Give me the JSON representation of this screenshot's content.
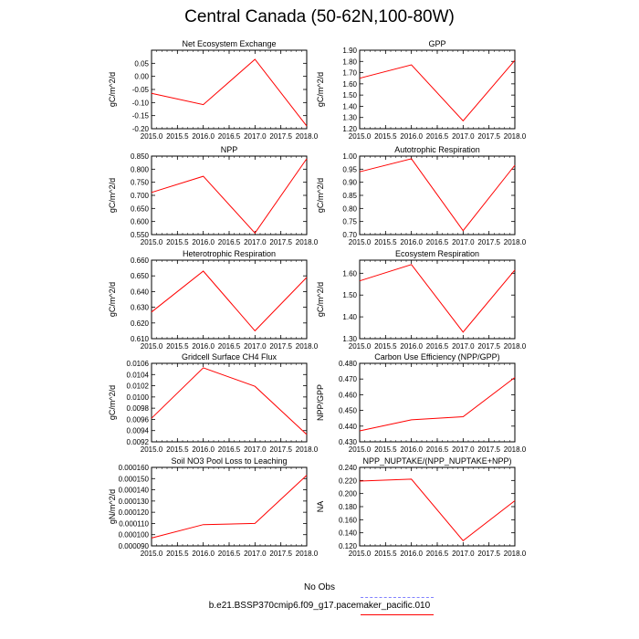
{
  "figure": {
    "title": "Central Canada (50-62N,100-80W)"
  },
  "legend": {
    "entries": [
      {
        "label": "No Obs",
        "color": "#8080ff",
        "style": "dashed"
      },
      {
        "label": "b.e21.BSSP370cmip6.f09_g17.pacemaker_pacific.010",
        "color": "#ff0000",
        "style": "solid"
      }
    ]
  },
  "chart_data": [
    {
      "type": "line",
      "title": "Net Ecosystem Exchange",
      "ylabel": "gC/m^2/d",
      "x": [
        2015,
        2016,
        2017,
        2018
      ],
      "xlim": [
        2015,
        2018
      ],
      "xticks": [
        "2015.0",
        "2015.5",
        "2016.0",
        "2016.5",
        "2017.0",
        "2017.5",
        "2018.0"
      ],
      "ylim": [
        -0.2,
        0.1
      ],
      "yticks": [
        "-0.20",
        "-0.15",
        "-0.10",
        "-0.05",
        "0.00",
        "0.05"
      ],
      "ytick_values": [
        -0.2,
        -0.15,
        -0.1,
        -0.05,
        0,
        0.05
      ],
      "series": [
        {
          "values": [
            -0.065,
            -0.108,
            0.065,
            -0.19
          ],
          "color": "#ff0000"
        }
      ]
    },
    {
      "type": "line",
      "title": "GPP",
      "ylabel": "gC/m^2/d",
      "x": [
        2015,
        2016,
        2017,
        2018
      ],
      "xlim": [
        2015,
        2018
      ],
      "xticks": [
        "2015.0",
        "2015.5",
        "2016.0",
        "2016.5",
        "2017.0",
        "2017.5",
        "2018.0"
      ],
      "ylim": [
        1.2,
        1.9
      ],
      "yticks": [
        "1.20",
        "1.30",
        "1.40",
        "1.50",
        "1.60",
        "1.70",
        "1.80",
        "1.90"
      ],
      "ytick_values": [
        1.2,
        1.3,
        1.4,
        1.5,
        1.6,
        1.7,
        1.8,
        1.9
      ],
      "series": [
        {
          "values": [
            1.65,
            1.77,
            1.27,
            1.81
          ],
          "color": "#ff0000"
        }
      ]
    },
    {
      "type": "line",
      "title": "NPP",
      "ylabel": "gC/m^2/d",
      "x": [
        2015,
        2016,
        2017,
        2018
      ],
      "xlim": [
        2015,
        2018
      ],
      "xticks": [
        "2015.0",
        "2015.5",
        "2016.0",
        "2016.5",
        "2017.0",
        "2017.5",
        "2018.0"
      ],
      "ylim": [
        0.55,
        0.85
      ],
      "yticks": [
        "0.550",
        "0.600",
        "0.650",
        "0.700",
        "0.750",
        "0.800",
        "0.850"
      ],
      "ytick_values": [
        0.55,
        0.6,
        0.65,
        0.7,
        0.75,
        0.8,
        0.85
      ],
      "series": [
        {
          "values": [
            0.711,
            0.773,
            0.556,
            0.84
          ],
          "color": "#ff0000"
        }
      ]
    },
    {
      "type": "line",
      "title": "Autotrophic Respiration",
      "ylabel": "gC/m^2/d",
      "x": [
        2015,
        2016,
        2017,
        2018
      ],
      "xlim": [
        2015,
        2018
      ],
      "xticks": [
        "2015.0",
        "2015.5",
        "2016.0",
        "2016.5",
        "2017.0",
        "2017.5",
        "2018.0"
      ],
      "ylim": [
        0.7,
        1.0
      ],
      "yticks": [
        "0.70",
        "0.75",
        "0.80",
        "0.85",
        "0.90",
        "0.95",
        "1.00"
      ],
      "ytick_values": [
        0.7,
        0.75,
        0.8,
        0.85,
        0.9,
        0.95,
        1.0
      ],
      "series": [
        {
          "values": [
            0.94,
            0.99,
            0.715,
            0.965
          ],
          "color": "#ff0000"
        }
      ]
    },
    {
      "type": "line",
      "title": "Heterotrophic Respiration",
      "ylabel": "gC/m^2/d",
      "x": [
        2015,
        2016,
        2017,
        2018
      ],
      "xlim": [
        2015,
        2018
      ],
      "xticks": [
        "2015.0",
        "2015.5",
        "2016.0",
        "2016.5",
        "2017.0",
        "2017.5",
        "2018.0"
      ],
      "ylim": [
        0.61,
        0.66
      ],
      "yticks": [
        "0.610",
        "0.620",
        "0.630",
        "0.640",
        "0.650",
        "0.660"
      ],
      "ytick_values": [
        0.61,
        0.62,
        0.63,
        0.64,
        0.65,
        0.66
      ],
      "series": [
        {
          "values": [
            0.627,
            0.653,
            0.615,
            0.649
          ],
          "color": "#ff0000"
        }
      ]
    },
    {
      "type": "line",
      "title": "Ecosystem Respiration",
      "ylabel": "gC/m^2/d",
      "x": [
        2015,
        2016,
        2017,
        2018
      ],
      "xlim": [
        2015,
        2018
      ],
      "xticks": [
        "2015.0",
        "2015.5",
        "2016.0",
        "2016.5",
        "2017.0",
        "2017.5",
        "2018.0"
      ],
      "ylim": [
        1.3,
        1.66
      ],
      "yticks": [
        "1.30",
        "1.40",
        "1.50",
        "1.60"
      ],
      "ytick_values": [
        1.3,
        1.4,
        1.5,
        1.6
      ],
      "series": [
        {
          "values": [
            1.565,
            1.64,
            1.33,
            1.615
          ],
          "color": "#ff0000"
        }
      ]
    },
    {
      "type": "line",
      "title": "Gridcell Surface CH4 Flux",
      "ylabel": "gC/m^2/d",
      "x": [
        2015,
        2016,
        2017,
        2018
      ],
      "xlim": [
        2015,
        2018
      ],
      "xticks": [
        "2015.0",
        "2015.5",
        "2016.0",
        "2016.5",
        "2017.0",
        "2017.5",
        "2018.0"
      ],
      "ylim": [
        0.0092,
        0.0106
      ],
      "yticks": [
        "0.0092",
        "0.0094",
        "0.0096",
        "0.0098",
        "0.0100",
        "0.0102",
        "0.0104",
        "0.0106"
      ],
      "ytick_values": [
        0.0092,
        0.0094,
        0.0096,
        0.0098,
        0.01,
        0.0102,
        0.0104,
        0.0106
      ],
      "series": [
        {
          "values": [
            0.00962,
            0.01052,
            0.01019,
            0.00933
          ],
          "color": "#ff0000"
        }
      ]
    },
    {
      "type": "line",
      "title": "Carbon Use Efficiency (NPP/GPP)",
      "ylabel": "NPP/GPP",
      "x": [
        2015,
        2016,
        2017,
        2018
      ],
      "xlim": [
        2015,
        2018
      ],
      "xticks": [
        "2015.0",
        "2015.5",
        "2016.0",
        "2016.5",
        "2017.0",
        "2017.5",
        "2018.0"
      ],
      "ylim": [
        0.43,
        0.48
      ],
      "yticks": [
        "0.430",
        "0.440",
        "0.450",
        "0.460",
        "0.470",
        "0.480"
      ],
      "ytick_values": [
        0.43,
        0.44,
        0.45,
        0.46,
        0.47,
        0.48
      ],
      "series": [
        {
          "values": [
            0.437,
            0.444,
            0.446,
            0.471
          ],
          "color": "#ff0000"
        }
      ]
    },
    {
      "type": "line",
      "title": "Soil NO3 Pool Loss to Leaching",
      "ylabel": "gN/m^2/d",
      "x": [
        2015,
        2016,
        2017,
        2018
      ],
      "xlim": [
        2015,
        2018
      ],
      "xticks": [
        "2015.0",
        "2015.5",
        "2016.0",
        "2016.5",
        "2017.0",
        "2017.5",
        "2018.0"
      ],
      "ylim": [
        9e-05,
        0.00016
      ],
      "yticks": [
        "0.000090",
        "0.000100",
        "0.000110",
        "0.000120",
        "0.000130",
        "0.000140",
        "0.000150",
        "0.000160"
      ],
      "ytick_values": [
        9e-05,
        0.0001,
        0.00011,
        0.00012,
        0.00013,
        0.00014,
        0.00015,
        0.00016
      ],
      "series": [
        {
          "values": [
            9.7e-05,
            0.000109,
            0.00011,
            0.000153
          ],
          "color": "#ff0000"
        }
      ]
    },
    {
      "type": "line",
      "title": "NPP_NUPTAKE/(NPP_NUPTAKE+NPP)",
      "ylabel": "NA",
      "x": [
        2015,
        2016,
        2017,
        2018
      ],
      "xlim": [
        2015,
        2018
      ],
      "xticks": [
        "2015.0",
        "2015.5",
        "2016.0",
        "2016.5",
        "2017.0",
        "2017.5",
        "2018.0"
      ],
      "ylim": [
        0.12,
        0.24
      ],
      "yticks": [
        "0.120",
        "0.140",
        "0.160",
        "0.180",
        "0.200",
        "0.220",
        "0.240"
      ],
      "ytick_values": [
        0.12,
        0.14,
        0.16,
        0.18,
        0.2,
        0.22,
        0.24
      ],
      "series": [
        {
          "values": [
            0.219,
            0.222,
            0.128,
            0.189
          ],
          "color": "#ff0000"
        }
      ]
    }
  ]
}
